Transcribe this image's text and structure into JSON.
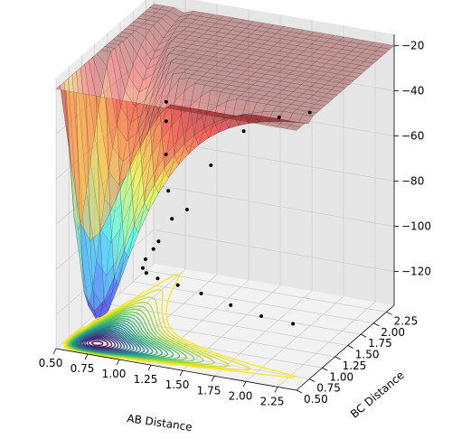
{
  "chart_data": {
    "type": "surface",
    "title": "",
    "xlabel": "AB Distance",
    "ylabel": "BC Distance",
    "zlabel": "",
    "x_ticks": [
      "0.50",
      "0.75",
      "1.00",
      "1.25",
      "1.50",
      "1.75",
      "2.00",
      "2.25"
    ],
    "y_ticks": [
      "0.50",
      "0.75",
      "1.00",
      "1.25",
      "1.50",
      "1.75",
      "2.00",
      "2.25"
    ],
    "z_ticks": [
      "−120",
      "−100",
      "−80",
      "−60",
      "−40",
      "−20"
    ],
    "xlim": [
      0.5,
      2.4
    ],
    "ylim": [
      0.5,
      2.4
    ],
    "zlim": [
      -135,
      -15
    ],
    "grid": true,
    "surface": {
      "colormap": "jet",
      "alpha": 0.35,
      "z_min": -130,
      "z_max": -20
    },
    "contours": {
      "colormap": "viridis",
      "levels": 28,
      "offset": "floor"
    },
    "trajectory": {
      "color": "#000000",
      "marker": "point",
      "points": [
        [
          0.62,
          2.2,
          -120
        ],
        [
          0.66,
          2.0,
          -119
        ],
        [
          0.72,
          1.7,
          -117
        ],
        [
          0.82,
          1.4,
          -114
        ],
        [
          0.95,
          1.15,
          -110
        ],
        [
          1.1,
          1.0,
          -108
        ],
        [
          1.3,
          0.9,
          -107
        ],
        [
          1.5,
          0.86,
          -108
        ],
        [
          1.75,
          0.82,
          -110
        ],
        [
          2.0,
          0.8,
          -112
        ],
        [
          2.25,
          0.8,
          -113
        ],
        [
          0.64,
          2.3,
          -60
        ],
        [
          0.7,
          2.15,
          -65
        ],
        [
          0.78,
          1.95,
          -75
        ],
        [
          0.9,
          1.7,
          -85
        ],
        [
          1.05,
          1.4,
          -90
        ],
        [
          1.25,
          1.2,
          -80
        ],
        [
          1.5,
          1.05,
          -55
        ],
        [
          1.8,
          0.95,
          -35
        ],
        [
          2.1,
          0.9,
          -25
        ],
        [
          2.35,
          0.88,
          -20
        ]
      ]
    }
  }
}
